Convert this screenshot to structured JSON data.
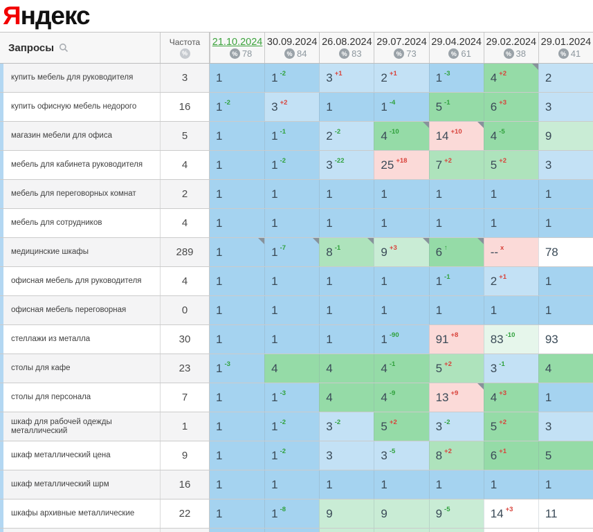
{
  "logo": {
    "first_letter": "Я",
    "rest": "ндекс"
  },
  "icons": {
    "percent": "%",
    "frequency_circle": "%",
    "search": "search-magnifier",
    "up_arrow": "↑",
    "dropped_out": "x",
    "note_marker": "corner-triangle"
  },
  "colors": {
    "logo_red": "#f20000",
    "current_date_green": "#3da33d",
    "sup_green": "#2fa13c",
    "sup_red": "#d8423a",
    "stripe_blue": "#b3d7f2",
    "tones": {
      "b": "#a5d3f0",
      "lb": "#c3e1f5",
      "g": "#95dba7",
      "pg": "#aee3bc",
      "pg2": "#c9ecd5",
      "vg": "#e6f6eb",
      "pk": "#fbdad8",
      "w": "#ffffff"
    }
  },
  "table": {
    "queries_header": "Запросы",
    "frequency_header": "Частота",
    "dates": [
      {
        "label": "21.10.2024",
        "coverage": "78",
        "current": true
      },
      {
        "label": "30.09.2024",
        "coverage": "84",
        "current": false
      },
      {
        "label": "26.08.2024",
        "coverage": "83",
        "current": false
      },
      {
        "label": "29.07.2024",
        "coverage": "73",
        "current": false
      },
      {
        "label": "29.04.2024",
        "coverage": "61",
        "current": false
      },
      {
        "label": "29.02.2024",
        "coverage": "38",
        "current": false
      },
      {
        "label": "29.01.2024",
        "coverage": "41",
        "current": false
      }
    ],
    "rows": [
      {
        "query": "купить мебель для руководителя",
        "frequency": "3",
        "cells": [
          {
            "v": "1",
            "tone": "b"
          },
          {
            "v": "1",
            "d": "-2",
            "dir": "up",
            "tone": "b"
          },
          {
            "v": "3",
            "d": "+1",
            "dir": "down",
            "tone": "lb"
          },
          {
            "v": "2",
            "d": "+1",
            "dir": "down",
            "tone": "lb"
          },
          {
            "v": "1",
            "d": "-3",
            "dir": "up",
            "tone": "b"
          },
          {
            "v": "4",
            "d": "+2",
            "dir": "down",
            "tone": "g",
            "note": true
          },
          {
            "v": "2",
            "tone": "lb"
          }
        ]
      },
      {
        "query": "купить офисную мебель недорого",
        "frequency": "16",
        "cells": [
          {
            "v": "1",
            "d": "-2",
            "dir": "up",
            "tone": "b"
          },
          {
            "v": "3",
            "d": "+2",
            "dir": "down",
            "tone": "lb"
          },
          {
            "v": "1",
            "tone": "b"
          },
          {
            "v": "1",
            "d": "-4",
            "dir": "up",
            "tone": "b"
          },
          {
            "v": "5",
            "d": "-1",
            "dir": "up",
            "tone": "g"
          },
          {
            "v": "6",
            "d": "+3",
            "dir": "down",
            "tone": "g"
          },
          {
            "v": "3",
            "tone": "lb"
          }
        ]
      },
      {
        "query": "магазин мебели для офиса",
        "frequency": "5",
        "cells": [
          {
            "v": "1",
            "tone": "b"
          },
          {
            "v": "1",
            "d": "-1",
            "dir": "up",
            "tone": "b"
          },
          {
            "v": "2",
            "d": "-2",
            "dir": "up",
            "tone": "lb"
          },
          {
            "v": "4",
            "d": "-10",
            "dir": "up",
            "tone": "g",
            "note": true
          },
          {
            "v": "14",
            "d": "+10",
            "dir": "down",
            "tone": "pk",
            "note": true
          },
          {
            "v": "4",
            "d": "-5",
            "dir": "up",
            "tone": "g"
          },
          {
            "v": "9",
            "tone": "pg2"
          }
        ]
      },
      {
        "query": "мебель для кабинета руководителя",
        "frequency": "4",
        "cells": [
          {
            "v": "1",
            "tone": "b"
          },
          {
            "v": "1",
            "d": "-2",
            "dir": "up",
            "tone": "b"
          },
          {
            "v": "3",
            "d": "-22",
            "dir": "up",
            "tone": "lb"
          },
          {
            "v": "25",
            "d": "+18",
            "dir": "down",
            "tone": "pk"
          },
          {
            "v": "7",
            "d": "+2",
            "dir": "down",
            "tone": "pg"
          },
          {
            "v": "5",
            "d": "+2",
            "dir": "down",
            "tone": "pg"
          },
          {
            "v": "3",
            "tone": "lb"
          }
        ]
      },
      {
        "query": "мебель для переговорных комнат",
        "frequency": "2",
        "cells": [
          {
            "v": "1",
            "tone": "b"
          },
          {
            "v": "1",
            "tone": "b"
          },
          {
            "v": "1",
            "tone": "b"
          },
          {
            "v": "1",
            "tone": "b"
          },
          {
            "v": "1",
            "tone": "b"
          },
          {
            "v": "1",
            "tone": "b"
          },
          {
            "v": "1",
            "tone": "b"
          }
        ]
      },
      {
        "query": "мебель для сотрудников",
        "frequency": "4",
        "cells": [
          {
            "v": "1",
            "tone": "b"
          },
          {
            "v": "1",
            "tone": "b"
          },
          {
            "v": "1",
            "tone": "b"
          },
          {
            "v": "1",
            "tone": "b"
          },
          {
            "v": "1",
            "tone": "b"
          },
          {
            "v": "1",
            "tone": "b"
          },
          {
            "v": "1",
            "tone": "b"
          }
        ]
      },
      {
        "query": "медицинские шкафы",
        "frequency": "289",
        "cells": [
          {
            "v": "1",
            "tone": "b",
            "note": true
          },
          {
            "v": "1",
            "d": "-7",
            "dir": "up",
            "tone": "b",
            "note": true
          },
          {
            "v": "8",
            "d": "-1",
            "dir": "up",
            "tone": "pg",
            "note": true
          },
          {
            "v": "9",
            "d": "+3",
            "dir": "down",
            "tone": "pg2",
            "note": true
          },
          {
            "v": "6",
            "d": "↑",
            "dir": "up",
            "tone": "g",
            "note": true
          },
          {
            "v": "--",
            "d": "x",
            "dir": "down",
            "tone": "pk"
          },
          {
            "v": "78",
            "tone": "w"
          }
        ]
      },
      {
        "query": "офисная мебель для руководителя",
        "frequency": "4",
        "cells": [
          {
            "v": "1",
            "tone": "b"
          },
          {
            "v": "1",
            "tone": "b"
          },
          {
            "v": "1",
            "tone": "b"
          },
          {
            "v": "1",
            "tone": "b"
          },
          {
            "v": "1",
            "d": "-1",
            "dir": "up",
            "tone": "b"
          },
          {
            "v": "2",
            "d": "+1",
            "dir": "down",
            "tone": "lb"
          },
          {
            "v": "1",
            "tone": "b"
          }
        ]
      },
      {
        "query": "офисная мебель переговорная",
        "frequency": "0",
        "cells": [
          {
            "v": "1",
            "tone": "b"
          },
          {
            "v": "1",
            "tone": "b"
          },
          {
            "v": "1",
            "tone": "b"
          },
          {
            "v": "1",
            "tone": "b"
          },
          {
            "v": "1",
            "tone": "b"
          },
          {
            "v": "1",
            "tone": "b"
          },
          {
            "v": "1",
            "tone": "b"
          }
        ]
      },
      {
        "query": "стеллажи из металла",
        "frequency": "30",
        "cells": [
          {
            "v": "1",
            "tone": "b"
          },
          {
            "v": "1",
            "tone": "b"
          },
          {
            "v": "1",
            "tone": "b"
          },
          {
            "v": "1",
            "d": "-90",
            "dir": "up",
            "tone": "b"
          },
          {
            "v": "91",
            "d": "+8",
            "dir": "down",
            "tone": "pk"
          },
          {
            "v": "83",
            "d": "-10",
            "dir": "up",
            "tone": "vg"
          },
          {
            "v": "93",
            "tone": "w"
          }
        ]
      },
      {
        "query": "столы для кафе",
        "frequency": "23",
        "cells": [
          {
            "v": "1",
            "d": "-3",
            "dir": "up",
            "tone": "b"
          },
          {
            "v": "4",
            "tone": "g"
          },
          {
            "v": "4",
            "tone": "g"
          },
          {
            "v": "4",
            "d": "-1",
            "dir": "up",
            "tone": "g"
          },
          {
            "v": "5",
            "d": "+2",
            "dir": "down",
            "tone": "pg"
          },
          {
            "v": "3",
            "d": "-1",
            "dir": "up",
            "tone": "lb"
          },
          {
            "v": "4",
            "tone": "g"
          }
        ]
      },
      {
        "query": "столы для персонала",
        "frequency": "7",
        "cells": [
          {
            "v": "1",
            "tone": "b"
          },
          {
            "v": "1",
            "d": "-3",
            "dir": "up",
            "tone": "b"
          },
          {
            "v": "4",
            "tone": "g"
          },
          {
            "v": "4",
            "d": "-9",
            "dir": "up",
            "tone": "g"
          },
          {
            "v": "13",
            "d": "+9",
            "dir": "down",
            "tone": "pk",
            "note": true
          },
          {
            "v": "4",
            "d": "+3",
            "dir": "down",
            "tone": "g"
          },
          {
            "v": "1",
            "tone": "b"
          }
        ]
      },
      {
        "query": "шкаф для рабочей одежды металлический",
        "frequency": "1",
        "cells": [
          {
            "v": "1",
            "tone": "b"
          },
          {
            "v": "1",
            "d": "-2",
            "dir": "up",
            "tone": "b"
          },
          {
            "v": "3",
            "d": "-2",
            "dir": "up",
            "tone": "lb"
          },
          {
            "v": "5",
            "d": "+2",
            "dir": "down",
            "tone": "g"
          },
          {
            "v": "3",
            "d": "-2",
            "dir": "up",
            "tone": "lb"
          },
          {
            "v": "5",
            "d": "+2",
            "dir": "down",
            "tone": "g"
          },
          {
            "v": "3",
            "tone": "lb"
          }
        ]
      },
      {
        "query": "шкаф металлический цена",
        "frequency": "9",
        "cells": [
          {
            "v": "1",
            "tone": "b"
          },
          {
            "v": "1",
            "d": "-2",
            "dir": "up",
            "tone": "b"
          },
          {
            "v": "3",
            "tone": "lb"
          },
          {
            "v": "3",
            "d": "-5",
            "dir": "up",
            "tone": "lb"
          },
          {
            "v": "8",
            "d": "+2",
            "dir": "down",
            "tone": "pg"
          },
          {
            "v": "6",
            "d": "+1",
            "dir": "down",
            "tone": "g"
          },
          {
            "v": "5",
            "tone": "g"
          }
        ]
      },
      {
        "query": "шкаф металлический шрм",
        "frequency": "16",
        "cells": [
          {
            "v": "1",
            "tone": "b"
          },
          {
            "v": "1",
            "tone": "b"
          },
          {
            "v": "1",
            "tone": "b"
          },
          {
            "v": "1",
            "tone": "b"
          },
          {
            "v": "1",
            "tone": "b"
          },
          {
            "v": "1",
            "tone": "b"
          },
          {
            "v": "1",
            "tone": "b"
          }
        ]
      },
      {
        "query": "шкафы архивные металлические",
        "frequency": "22",
        "cells": [
          {
            "v": "1",
            "tone": "b"
          },
          {
            "v": "1",
            "d": "-8",
            "dir": "up",
            "tone": "b"
          },
          {
            "v": "9",
            "tone": "pg2"
          },
          {
            "v": "9",
            "tone": "pg2"
          },
          {
            "v": "9",
            "d": "-5",
            "dir": "up",
            "tone": "pg2"
          },
          {
            "v": "14",
            "d": "+3",
            "dir": "down",
            "tone": "w"
          },
          {
            "v": "11",
            "tone": "w"
          }
        ]
      }
    ],
    "partial_row_tones": [
      "b",
      "b",
      "pg2",
      "pg2",
      "pg2",
      "w",
      "w"
    ]
  }
}
